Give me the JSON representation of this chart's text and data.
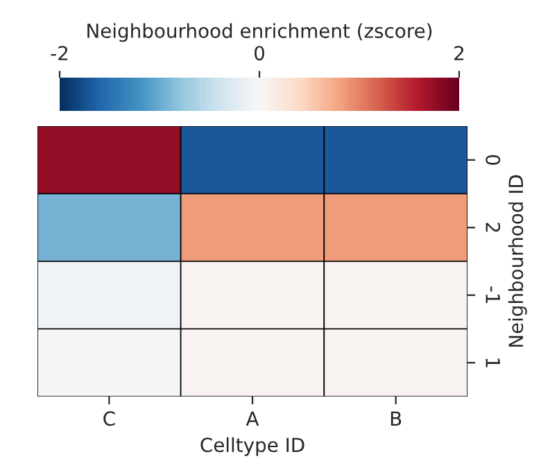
{
  "chart_data": {
    "type": "heatmap",
    "xlabel": "Celltype ID",
    "ylabel": "Neighbourhood ID",
    "clabel": "Neighbourhood enrichment (zscore)",
    "categories": [
      "C",
      "A",
      "B"
    ],
    "y_categories": [
      "0",
      "2",
      "-1",
      "1"
    ],
    "cells": [
      [
        1.75,
        -1.7,
        -1.7
      ],
      [
        -0.95,
        0.85,
        0.85
      ],
      [
        -0.08,
        0.06,
        0.06
      ],
      [
        -0.04,
        0.05,
        0.05
      ]
    ],
    "clim": [
      -2,
      2
    ],
    "cticks": [
      -2,
      0,
      2
    ]
  }
}
